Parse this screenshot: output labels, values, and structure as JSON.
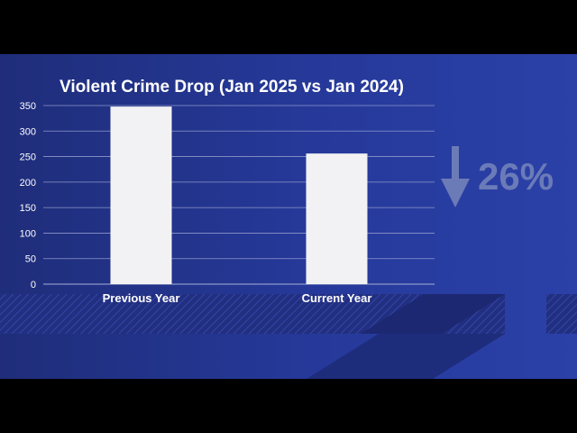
{
  "chart_data": {
    "type": "bar",
    "title": "Violent Crime Drop (Jan 2025 vs Jan 2024)",
    "categories": [
      "Previous Year",
      "Current Year"
    ],
    "values": [
      348,
      256
    ],
    "ylim": [
      0,
      350
    ],
    "yticks": [
      "0",
      "50",
      "100",
      "150",
      "200",
      "250",
      "300",
      "350"
    ],
    "grid": true,
    "bar_color": "#f2f2f4"
  },
  "stat": {
    "value": "26%",
    "arrow_icon": "down-arrow-icon",
    "color": "#6b7bb8"
  },
  "colors": {
    "background": "#26399a",
    "text": "#ffffff",
    "grid": "#8d97c9"
  }
}
